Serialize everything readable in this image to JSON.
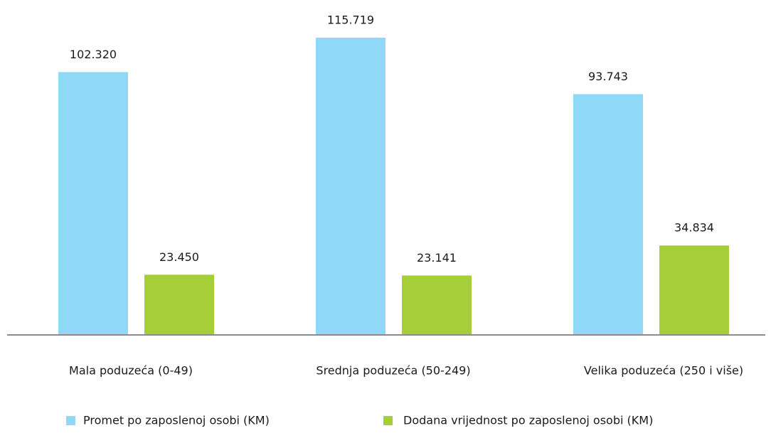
{
  "chart_data": {
    "type": "bar",
    "categories": [
      "Mala poduzeća (0-49)",
      "Srednja poduzeća (50-249)",
      "Velika poduzeća (250 i više)"
    ],
    "series": [
      {
        "name": "Promet po zaposlenoj osobi (KM)",
        "color": "#8fd8f6",
        "values": [
          102320,
          115719,
          93743
        ],
        "value_labels": [
          "102.320",
          "115.719",
          "93.743"
        ]
      },
      {
        "name": "Dodana vrijednost po zaposlenoj osobi (KM)",
        "color": "#a6ce39",
        "values": [
          23450,
          23141,
          34834
        ],
        "value_labels": [
          "23.450",
          "23.141",
          "34.834"
        ]
      }
    ],
    "legend": "bottom"
  }
}
